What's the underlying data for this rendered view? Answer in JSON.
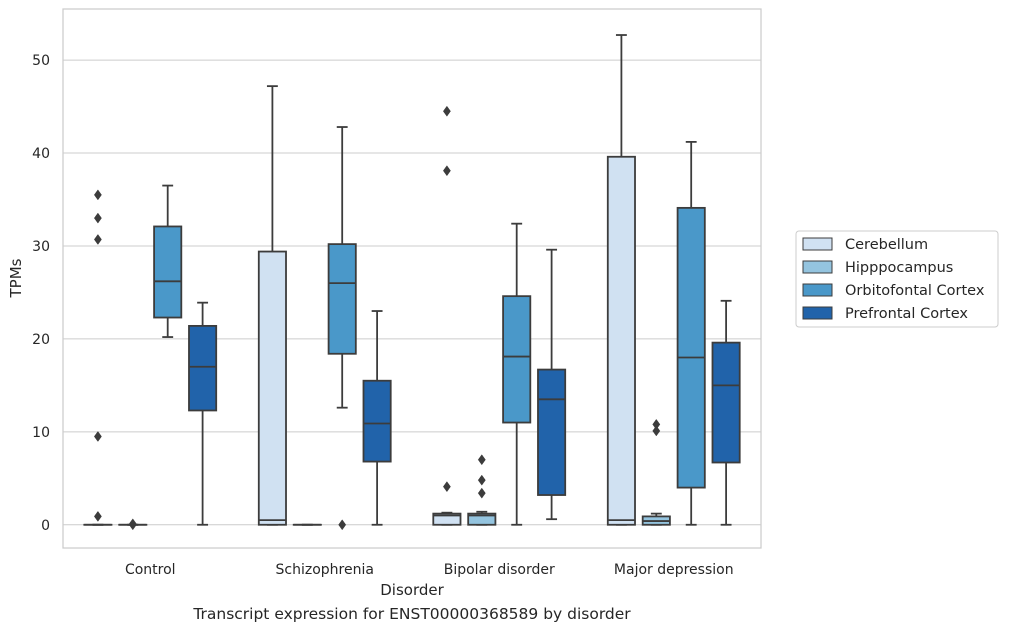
{
  "caption": "Transcript expression for ENST00000368589 by disorder",
  "chart_data": {
    "type": "box",
    "xlabel": "Disorder",
    "ylabel": "TPMs",
    "categories": [
      "Control",
      "Schizophrenia",
      "Bipolar disorder",
      "Major depression"
    ],
    "y_ticks": [
      0,
      10,
      20,
      30,
      40,
      50
    ],
    "ylim": [
      -2.5,
      55.5
    ],
    "grid": "horizontal",
    "legend_position": "right",
    "series": [
      {
        "name": "Cerebellum",
        "color": "#d0e1f2",
        "boxes": [
          {
            "q1": 0,
            "median": 0,
            "q3": 0,
            "whisker_low": 0,
            "whisker_high": 0,
            "outliers": [
              35.5,
              33.0,
              30.7,
              9.5,
              0.9
            ]
          },
          {
            "q1": 0,
            "median": 0.5,
            "q3": 29.4,
            "whisker_low": 0,
            "whisker_high": 47.2,
            "outliers": []
          },
          {
            "q1": 0,
            "median": 1.0,
            "q3": 1.2,
            "whisker_low": 0,
            "whisker_high": 1.3,
            "outliers": [
              44.5,
              38.1,
              4.1
            ]
          },
          {
            "q1": 0,
            "median": 0.5,
            "q3": 39.6,
            "whisker_low": 0,
            "whisker_high": 52.7,
            "outliers": []
          }
        ]
      },
      {
        "name": "Hipppocampus",
        "color": "#94c4df",
        "boxes": [
          {
            "q1": 0,
            "median": 0,
            "q3": 0,
            "whisker_low": 0,
            "whisker_high": 0,
            "outliers": [
              0.1,
              0
            ]
          },
          {
            "q1": 0,
            "median": 0,
            "q3": 0,
            "whisker_low": 0,
            "whisker_high": 0,
            "outliers": []
          },
          {
            "q1": 0,
            "median": 1.0,
            "q3": 1.2,
            "whisker_low": 0,
            "whisker_high": 1.4,
            "outliers": [
              7.0,
              4.8,
              3.4
            ]
          },
          {
            "q1": 0,
            "median": 0.4,
            "q3": 0.9,
            "whisker_low": 0,
            "whisker_high": 1.2,
            "outliers": [
              10.8,
              10.1
            ]
          }
        ]
      },
      {
        "name": "Orbitofontal Cortex",
        "color": "#4a98c9",
        "boxes": [
          {
            "q1": 22.3,
            "median": 26.2,
            "q3": 32.1,
            "whisker_low": 20.2,
            "whisker_high": 36.5,
            "outliers": []
          },
          {
            "q1": 18.4,
            "median": 26.0,
            "q3": 30.2,
            "whisker_low": 12.6,
            "whisker_high": 42.8,
            "outliers": [
              0
            ]
          },
          {
            "q1": 11.0,
            "median": 18.1,
            "q3": 24.6,
            "whisker_low": 0,
            "whisker_high": 32.4,
            "outliers": []
          },
          {
            "q1": 4.0,
            "median": 18.0,
            "q3": 34.1,
            "whisker_low": 0,
            "whisker_high": 41.2,
            "outliers": []
          }
        ]
      },
      {
        "name": "Prefrontal Cortex",
        "color": "#2163aa",
        "boxes": [
          {
            "q1": 12.3,
            "median": 17.0,
            "q3": 21.4,
            "whisker_low": 0,
            "whisker_high": 23.9,
            "outliers": []
          },
          {
            "q1": 6.8,
            "median": 10.9,
            "q3": 15.5,
            "whisker_low": 0,
            "whisker_high": 23.0,
            "outliers": []
          },
          {
            "q1": 3.2,
            "median": 13.5,
            "q3": 16.7,
            "whisker_low": 0.6,
            "whisker_high": 29.6,
            "outliers": []
          },
          {
            "q1": 6.7,
            "median": 15.0,
            "q3": 19.6,
            "whisker_low": 0,
            "whisker_high": 24.1,
            "outliers": []
          }
        ]
      }
    ]
  }
}
